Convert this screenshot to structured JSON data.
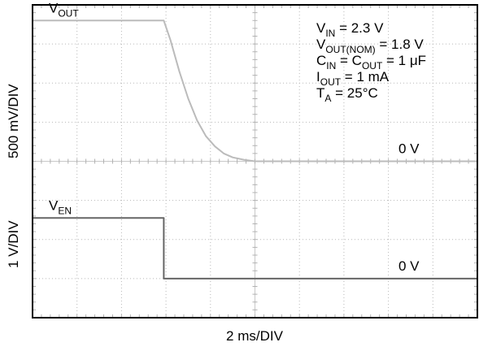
{
  "chart_data": {
    "type": "line",
    "title": "",
    "grid": true,
    "xlabel": "2 ms/DIV",
    "x_divisions": 10,
    "y_divisions": 8,
    "channels": [
      {
        "name_main": "V",
        "name_sub": "OUT",
        "axis_label": "500 mV/DIV",
        "zero_label": "0 V",
        "color": "#bbbbbb",
        "zero_div": 4,
        "unit": "V",
        "volts_per_div": 0.5,
        "x_ms": [
          0,
          5.9,
          6.2,
          6.6,
          7.0,
          7.4,
          7.8,
          8.2,
          8.6,
          9.0,
          9.5,
          10.0,
          11.0,
          20.0
        ],
        "y": [
          1.8,
          1.8,
          1.55,
          1.15,
          0.8,
          0.52,
          0.32,
          0.19,
          0.1,
          0.05,
          0.02,
          0.0,
          0.0,
          0.0
        ]
      },
      {
        "name_main": "V",
        "name_sub": "EN",
        "axis_label": "1 V/DIV",
        "zero_label": "0 V",
        "color": "#666666",
        "zero_div": 1,
        "unit": "V",
        "volts_per_div": 1.0,
        "x_ms": [
          0,
          5.9,
          5.9,
          20.0
        ],
        "y": [
          1.55,
          1.55,
          0.0,
          0.0
        ]
      }
    ],
    "annotations": [
      {
        "main": "V",
        "sub": "IN",
        "rest": " = 2.3 V"
      },
      {
        "main": "V",
        "sub": "OUT(NOM)",
        "rest": " = 1.8 V"
      },
      {
        "main": "C",
        "sub": "IN",
        "rest": " = C",
        "sub2": "OUT",
        "rest2": " = 1 μF"
      },
      {
        "main": "I",
        "sub": "OUT",
        "rest": " = 1 mA"
      },
      {
        "main": "T",
        "sub": "A",
        "rest": " = 25°C"
      }
    ]
  }
}
